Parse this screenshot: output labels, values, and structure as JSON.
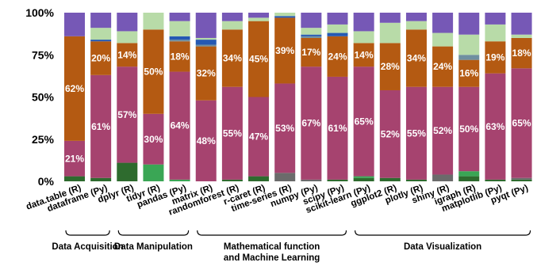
{
  "chart_data": {
    "type": "bar",
    "stacked": true,
    "normalized": true,
    "ylim": [
      0,
      100
    ],
    "yticks": [
      "0%",
      "25%",
      "50%",
      "75%",
      "100%"
    ],
    "grid": false,
    "legend": "none",
    "colors": {
      "s1": "#2e6b2e",
      "s1b": "#3aa655",
      "s2": "#a6436f",
      "s3": "#b45a12",
      "s4": "#6f8fa0",
      "s5": "#2559b3",
      "s6": "#b8dba8",
      "s7": "#7658b6",
      "gray": "#6b6b6b"
    },
    "categories": [
      "data.table (R)",
      "dataframe (Py)",
      "dplyr (R)",
      "tidyr (R)",
      "pandas (Py)",
      "matrix (R)",
      "randomforest (R)",
      "r-caret (R)",
      "time-series (R)",
      "numpy (Py)",
      "scipy (Py)",
      "scikit-learn (Py)",
      "ggplot2 (R)",
      "plotly (R)",
      "shiny (R)",
      "igraph (R)",
      "matplotlib (Py)",
      "pyqt (Py)"
    ],
    "bars": [
      {
        "segments": [
          [
            "s1",
            3
          ],
          [
            "s2",
            21
          ],
          [
            "s3",
            62
          ],
          [
            "s7",
            14
          ]
        ],
        "labels": [
          "21%",
          "62%",
          null
        ]
      },
      {
        "segments": [
          [
            "s1",
            2
          ],
          [
            "s2",
            61
          ],
          [
            "s3",
            20
          ],
          [
            "s5",
            1
          ],
          [
            "s6",
            7
          ],
          [
            "s7",
            9
          ]
        ],
        "labels": [
          "61%",
          "20%"
        ]
      },
      {
        "segments": [
          [
            "s1",
            11
          ],
          [
            "s2",
            57
          ],
          [
            "s3",
            14
          ],
          [
            "s6",
            7
          ],
          [
            "s7",
            11
          ]
        ],
        "labels": [
          "57%",
          "14%"
        ]
      },
      {
        "segments": [
          [
            "s1b",
            10
          ],
          [
            "s2",
            30
          ],
          [
            "s3",
            50
          ],
          [
            "s6",
            10
          ]
        ],
        "labels": [
          "30%",
          "50%"
        ]
      },
      {
        "segments": [
          [
            "s1b",
            1
          ],
          [
            "s2",
            64
          ],
          [
            "s3",
            18
          ],
          [
            "s4",
            1
          ],
          [
            "s5",
            2
          ],
          [
            "s6",
            9
          ],
          [
            "s7",
            5
          ]
        ],
        "labels": [
          "64%",
          "18%"
        ]
      },
      {
        "segments": [
          [
            "s2",
            48
          ],
          [
            "s3",
            32
          ],
          [
            "s4",
            1
          ],
          [
            "s5",
            3
          ],
          [
            "s6",
            1
          ],
          [
            "s7",
            15
          ]
        ],
        "labels": [
          "48%",
          "32%"
        ]
      },
      {
        "segments": [
          [
            "s1",
            1
          ],
          [
            "s2",
            55
          ],
          [
            "s3",
            34
          ],
          [
            "s6",
            5
          ],
          [
            "s7",
            5
          ]
        ],
        "labels": [
          "55%",
          "34%"
        ]
      },
      {
        "segments": [
          [
            "s1",
            3
          ],
          [
            "s2",
            47
          ],
          [
            "s3",
            45
          ],
          [
            "s6",
            2
          ],
          [
            "s7",
            3
          ]
        ],
        "labels": [
          "47%",
          "45%"
        ]
      },
      {
        "segments": [
          [
            "gray",
            5
          ],
          [
            "s2",
            53
          ],
          [
            "s3",
            39
          ],
          [
            "s5",
            1
          ],
          [
            "s6",
            2
          ]
        ],
        "labels": [
          "53%",
          "39%"
        ]
      },
      {
        "segments": [
          [
            "gray",
            1
          ],
          [
            "s2",
            67
          ],
          [
            "s3",
            17
          ],
          [
            "s4",
            1
          ],
          [
            "s5",
            1
          ],
          [
            "s6",
            4
          ],
          [
            "s7",
            9
          ]
        ],
        "labels": [
          "67%",
          "17%"
        ]
      },
      {
        "segments": [
          [
            "s1",
            1
          ],
          [
            "s2",
            61
          ],
          [
            "s3",
            24
          ],
          [
            "s5",
            2
          ],
          [
            "s6",
            5
          ],
          [
            "s7",
            7
          ]
        ],
        "labels": [
          "61%",
          "24%"
        ]
      },
      {
        "segments": [
          [
            "s1",
            2
          ],
          [
            "s1b",
            1
          ],
          [
            "s2",
            65
          ],
          [
            "s3",
            14
          ],
          [
            "s6",
            7
          ],
          [
            "s7",
            11
          ]
        ],
        "labels": [
          "65%",
          "14%"
        ]
      },
      {
        "segments": [
          [
            "s1",
            2
          ],
          [
            "s2",
            52
          ],
          [
            "s3",
            28
          ],
          [
            "s6",
            12
          ],
          [
            "s7",
            6
          ]
        ],
        "labels": [
          "52%",
          "28%"
        ]
      },
      {
        "segments": [
          [
            "s1",
            1
          ],
          [
            "s2",
            55
          ],
          [
            "s3",
            34
          ],
          [
            "s6",
            5
          ],
          [
            "s7",
            5
          ]
        ],
        "labels": [
          "55%",
          "34%"
        ]
      },
      {
        "segments": [
          [
            "gray",
            4
          ],
          [
            "s2",
            52
          ],
          [
            "s3",
            24
          ],
          [
            "s6",
            8
          ],
          [
            "s7",
            12
          ]
        ],
        "labels": [
          "52%",
          "24%"
        ]
      },
      {
        "segments": [
          [
            "s1",
            3
          ],
          [
            "s1b",
            3
          ],
          [
            "s2",
            50
          ],
          [
            "s3",
            16
          ],
          [
            "s4",
            3
          ],
          [
            "s6",
            12
          ],
          [
            "s7",
            13
          ]
        ],
        "labels": [
          "50%",
          "16%"
        ]
      },
      {
        "segments": [
          [
            "s1",
            1
          ],
          [
            "s2",
            63
          ],
          [
            "s3",
            19
          ],
          [
            "s6",
            10
          ],
          [
            "s7",
            7
          ]
        ],
        "labels": [
          "63%",
          "19%"
        ]
      },
      {
        "segments": [
          [
            "s1",
            1
          ],
          [
            "gray",
            1
          ],
          [
            "s2",
            65
          ],
          [
            "s3",
            18
          ],
          [
            "s6",
            2
          ],
          [
            "s7",
            13
          ]
        ],
        "labels": [
          "65%",
          "18%"
        ]
      }
    ],
    "groups": [
      {
        "label": [
          "Data Acquisition"
        ],
        "from": 0,
        "to": 1
      },
      {
        "label": [
          "Data Manipulation"
        ],
        "from": 2,
        "to": 4
      },
      {
        "label": [
          "Mathematical function",
          "and Machine Learning"
        ],
        "from": 5,
        "to": 10
      },
      {
        "label": [
          "Data Visualization"
        ],
        "from": 11,
        "to": 17
      }
    ]
  }
}
